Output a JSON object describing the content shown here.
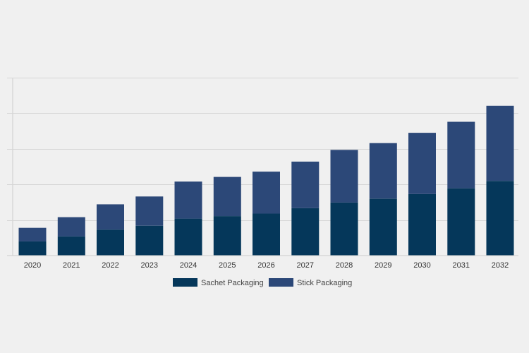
{
  "chart_data": {
    "type": "bar",
    "stacked": true,
    "categories": [
      "2020",
      "2021",
      "2022",
      "2023",
      "2024",
      "2025",
      "2026",
      "2027",
      "2028",
      "2029",
      "2030",
      "2031",
      "2032"
    ],
    "series": [
      {
        "name": "Sachet Packaging",
        "values": [
          0.4,
          0.54,
          0.73,
          0.84,
          1.04,
          1.11,
          1.18,
          1.33,
          1.49,
          1.6,
          1.73,
          1.89,
          2.1
        ]
      },
      {
        "name": "Stick Packaging",
        "values": [
          0.38,
          0.54,
          0.71,
          0.82,
          1.04,
          1.1,
          1.18,
          1.31,
          1.48,
          1.56,
          1.72,
          1.87,
          2.11
        ]
      }
    ],
    "colors": [
      "#05375a",
      "#2c4878"
    ],
    "ylim": [
      0,
      5
    ],
    "y_gridlines": [
      1,
      2,
      3,
      4,
      5
    ],
    "y_tick_labels": false,
    "grid": true,
    "legend_position": "bottom-center",
    "title": "",
    "xlabel": "",
    "ylabel": ""
  }
}
